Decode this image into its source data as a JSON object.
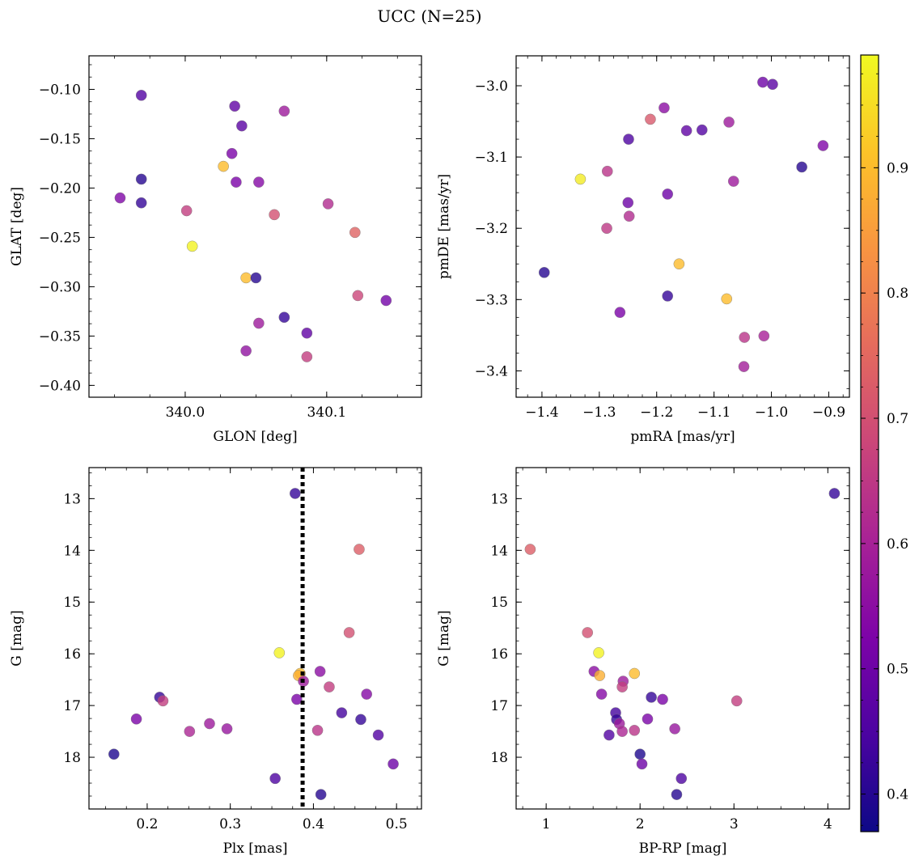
{
  "figure": {
    "title": "UCC (N=25)"
  },
  "colorbar": {
    "colormap": "plasma",
    "range": [
      0.37,
      0.99
    ],
    "ticks": [
      0.4,
      0.5,
      0.6,
      0.7,
      0.8,
      0.9
    ],
    "tick_labels": [
      "0.4",
      "0.5",
      "0.6",
      "0.7",
      "0.8",
      "0.9"
    ]
  },
  "chart_data": [
    {
      "type": "scatter",
      "title": "",
      "xlabel": "GLON [deg]",
      "ylabel": "GLAT [deg]",
      "xlim": [
        339.932,
        340.167
      ],
      "ylim": [
        -0.412,
        -0.066
      ],
      "xticks": [
        340.0,
        340.1
      ],
      "xtick_labels": [
        "340.0",
        "340.1"
      ],
      "yticks": [
        -0.1,
        -0.15,
        -0.2,
        -0.25,
        -0.3,
        -0.35,
        -0.4
      ],
      "ytick_labels": [
        "−0.10",
        "−0.15",
        "−0.20",
        "−0.25",
        "−0.30",
        "−0.35",
        "−0.40"
      ],
      "points": [
        {
          "x": 339.969,
          "y": -0.106,
          "c": 0.46
        },
        {
          "x": 340.035,
          "y": -0.117,
          "c": 0.48
        },
        {
          "x": 340.07,
          "y": -0.122,
          "c": 0.58
        },
        {
          "x": 340.04,
          "y": -0.137,
          "c": 0.47
        },
        {
          "x": 340.033,
          "y": -0.165,
          "c": 0.52
        },
        {
          "x": 340.027,
          "y": -0.178,
          "c": 0.9
        },
        {
          "x": 339.969,
          "y": -0.191,
          "c": 0.4
        },
        {
          "x": 340.036,
          "y": -0.194,
          "c": 0.52
        },
        {
          "x": 340.052,
          "y": -0.194,
          "c": 0.54
        },
        {
          "x": 339.954,
          "y": -0.21,
          "c": 0.53
        },
        {
          "x": 339.969,
          "y": -0.215,
          "c": 0.42
        },
        {
          "x": 340.101,
          "y": -0.216,
          "c": 0.62
        },
        {
          "x": 340.001,
          "y": -0.223,
          "c": 0.66
        },
        {
          "x": 340.063,
          "y": -0.227,
          "c": 0.7
        },
        {
          "x": 340.12,
          "y": -0.245,
          "c": 0.74
        },
        {
          "x": 340.005,
          "y": -0.259,
          "c": 0.98
        },
        {
          "x": 340.043,
          "y": -0.291,
          "c": 0.9
        },
        {
          "x": 340.05,
          "y": -0.291,
          "c": 0.4
        },
        {
          "x": 340.122,
          "y": -0.309,
          "c": 0.68
        },
        {
          "x": 340.142,
          "y": -0.314,
          "c": 0.51
        },
        {
          "x": 340.07,
          "y": -0.331,
          "c": 0.42
        },
        {
          "x": 340.052,
          "y": -0.337,
          "c": 0.58
        },
        {
          "x": 340.086,
          "y": -0.347,
          "c": 0.48
        },
        {
          "x": 340.043,
          "y": -0.365,
          "c": 0.56
        },
        {
          "x": 340.086,
          "y": -0.371,
          "c": 0.66
        }
      ]
    },
    {
      "type": "scatter",
      "title": "",
      "xlabel": "pmRA [mas/yr]",
      "ylabel": "pmDE [mas/yr]",
      "xlim": [
        -1.445,
        -0.864
      ],
      "ylim": [
        -3.437,
        -2.958
      ],
      "xticks": [
        -1.4,
        -1.3,
        -1.2,
        -1.1,
        -1.0,
        -0.9
      ],
      "xtick_labels": [
        "−1.4",
        "−1.3",
        "−1.2",
        "−1.1",
        "−1.0",
        "−0.9"
      ],
      "yticks": [
        -3.0,
        -3.1,
        -3.2,
        -3.3,
        -3.4
      ],
      "ytick_labels": [
        "−3.0",
        "−3.1",
        "−3.2",
        "−3.3",
        "−3.4"
      ],
      "points": [
        {
          "x": -1.015,
          "y": -2.995,
          "c": 0.5
        },
        {
          "x": -0.998,
          "y": -2.998,
          "c": 0.47
        },
        {
          "x": -1.187,
          "y": -3.031,
          "c": 0.55
        },
        {
          "x": -1.211,
          "y": -3.047,
          "c": 0.72
        },
        {
          "x": -1.074,
          "y": -3.051,
          "c": 0.58
        },
        {
          "x": -1.148,
          "y": -3.063,
          "c": 0.48
        },
        {
          "x": -1.121,
          "y": -3.062,
          "c": 0.46
        },
        {
          "x": -1.249,
          "y": -3.075,
          "c": 0.45
        },
        {
          "x": -0.91,
          "y": -3.084,
          "c": 0.53
        },
        {
          "x": -0.947,
          "y": -3.114,
          "c": 0.4
        },
        {
          "x": -1.286,
          "y": -3.12,
          "c": 0.64
        },
        {
          "x": -1.333,
          "y": -3.131,
          "c": 0.97
        },
        {
          "x": -1.066,
          "y": -3.134,
          "c": 0.58
        },
        {
          "x": -1.181,
          "y": -3.152,
          "c": 0.5
        },
        {
          "x": -1.25,
          "y": -3.164,
          "c": 0.5
        },
        {
          "x": -1.248,
          "y": -3.183,
          "c": 0.62
        },
        {
          "x": -1.287,
          "y": -3.2,
          "c": 0.65
        },
        {
          "x": -1.161,
          "y": -3.25,
          "c": 0.9
        },
        {
          "x": -1.396,
          "y": -3.262,
          "c": 0.4
        },
        {
          "x": -1.181,
          "y": -3.295,
          "c": 0.42
        },
        {
          "x": -1.078,
          "y": -3.299,
          "c": 0.9
        },
        {
          "x": -1.264,
          "y": -3.318,
          "c": 0.52
        },
        {
          "x": -1.013,
          "y": -3.351,
          "c": 0.6
        },
        {
          "x": -1.047,
          "y": -3.353,
          "c": 0.64
        },
        {
          "x": -1.048,
          "y": -3.394,
          "c": 0.59
        }
      ]
    },
    {
      "type": "scatter",
      "title": "",
      "xlabel": "Plx [mas]",
      "ylabel": "G [mag]",
      "xlim": [
        0.13,
        0.53
      ],
      "ylim": [
        19.0,
        12.4
      ],
      "xticks": [
        0.2,
        0.3,
        0.4,
        0.5
      ],
      "xtick_labels": [
        "0.2",
        "0.3",
        "0.4",
        "0.5"
      ],
      "yticks": [
        13,
        14,
        15,
        16,
        17,
        18
      ],
      "ytick_labels": [
        "13",
        "14",
        "15",
        "16",
        "17",
        "18"
      ],
      "vline": {
        "x": 0.387,
        "style": "dotted",
        "color": "#000000"
      },
      "points": [
        {
          "x": 0.378,
          "y": 12.9,
          "c": 0.42
        },
        {
          "x": 0.455,
          "y": 13.98,
          "c": 0.73
        },
        {
          "x": 0.443,
          "y": 15.59,
          "c": 0.7
        },
        {
          "x": 0.359,
          "y": 15.98,
          "c": 0.98
        },
        {
          "x": 0.408,
          "y": 16.34,
          "c": 0.55
        },
        {
          "x": 0.384,
          "y": 16.38,
          "c": 0.9
        },
        {
          "x": 0.382,
          "y": 16.42,
          "c": 0.88
        },
        {
          "x": 0.388,
          "y": 16.53,
          "c": 0.58
        },
        {
          "x": 0.419,
          "y": 16.64,
          "c": 0.66
        },
        {
          "x": 0.464,
          "y": 16.78,
          "c": 0.54
        },
        {
          "x": 0.215,
          "y": 16.84,
          "c": 0.42
        },
        {
          "x": 0.38,
          "y": 16.88,
          "c": 0.52
        },
        {
          "x": 0.219,
          "y": 16.91,
          "c": 0.66
        },
        {
          "x": 0.434,
          "y": 17.14,
          "c": 0.44
        },
        {
          "x": 0.187,
          "y": 17.26,
          "c": 0.52
        },
        {
          "x": 0.457,
          "y": 17.27,
          "c": 0.42
        },
        {
          "x": 0.275,
          "y": 17.35,
          "c": 0.58
        },
        {
          "x": 0.296,
          "y": 17.45,
          "c": 0.57
        },
        {
          "x": 0.405,
          "y": 17.48,
          "c": 0.64
        },
        {
          "x": 0.251,
          "y": 17.5,
          "c": 0.61
        },
        {
          "x": 0.478,
          "y": 17.57,
          "c": 0.46
        },
        {
          "x": 0.16,
          "y": 17.94,
          "c": 0.39
        },
        {
          "x": 0.496,
          "y": 18.13,
          "c": 0.5
        },
        {
          "x": 0.354,
          "y": 18.41,
          "c": 0.45
        },
        {
          "x": 0.409,
          "y": 18.72,
          "c": 0.4
        }
      ]
    },
    {
      "type": "scatter",
      "title": "",
      "xlabel": "BP-RP [mag]",
      "ylabel": "G [mag]",
      "xlim": [
        0.68,
        4.23
      ],
      "ylim": [
        19.0,
        12.4
      ],
      "xticks": [
        1,
        2,
        3,
        4
      ],
      "xtick_labels": [
        "1",
        "2",
        "3",
        "4"
      ],
      "yticks": [
        13,
        14,
        15,
        16,
        17,
        18
      ],
      "ytick_labels": [
        "13",
        "14",
        "15",
        "16",
        "17",
        "18"
      ],
      "points": [
        {
          "x": 4.07,
          "y": 12.9,
          "c": 0.42
        },
        {
          "x": 0.83,
          "y": 13.98,
          "c": 0.73
        },
        {
          "x": 1.44,
          "y": 15.59,
          "c": 0.7
        },
        {
          "x": 1.56,
          "y": 15.98,
          "c": 0.98
        },
        {
          "x": 1.51,
          "y": 16.34,
          "c": 0.55
        },
        {
          "x": 1.94,
          "y": 16.38,
          "c": 0.9
        },
        {
          "x": 1.57,
          "y": 16.42,
          "c": 0.88
        },
        {
          "x": 1.82,
          "y": 16.53,
          "c": 0.58
        },
        {
          "x": 1.81,
          "y": 16.64,
          "c": 0.66
        },
        {
          "x": 1.59,
          "y": 16.78,
          "c": 0.54
        },
        {
          "x": 2.12,
          "y": 16.84,
          "c": 0.42
        },
        {
          "x": 2.24,
          "y": 16.88,
          "c": 0.52
        },
        {
          "x": 3.03,
          "y": 16.91,
          "c": 0.66
        },
        {
          "x": 1.74,
          "y": 17.14,
          "c": 0.44
        },
        {
          "x": 2.08,
          "y": 17.26,
          "c": 0.52
        },
        {
          "x": 1.75,
          "y": 17.27,
          "c": 0.42
        },
        {
          "x": 1.78,
          "y": 17.35,
          "c": 0.58
        },
        {
          "x": 2.37,
          "y": 17.45,
          "c": 0.57
        },
        {
          "x": 1.94,
          "y": 17.48,
          "c": 0.64
        },
        {
          "x": 1.81,
          "y": 17.5,
          "c": 0.61
        },
        {
          "x": 1.67,
          "y": 17.57,
          "c": 0.46
        },
        {
          "x": 2.0,
          "y": 17.94,
          "c": 0.39
        },
        {
          "x": 2.02,
          "y": 18.13,
          "c": 0.5
        },
        {
          "x": 2.44,
          "y": 18.41,
          "c": 0.45
        },
        {
          "x": 2.39,
          "y": 18.72,
          "c": 0.4
        }
      ]
    }
  ]
}
